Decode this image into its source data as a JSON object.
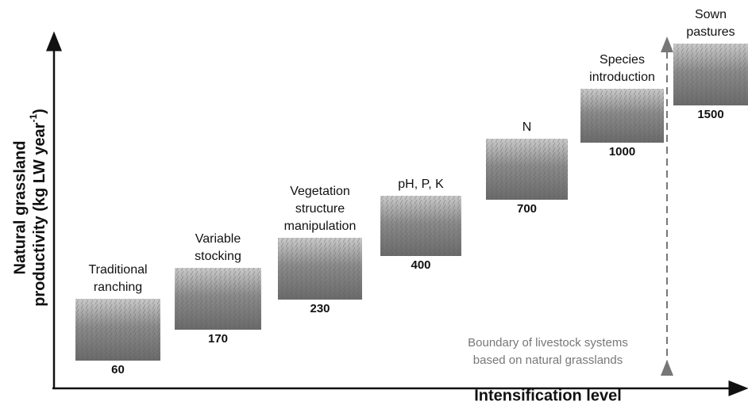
{
  "nodes": [
    {
      "label": [
        "Traditional",
        "ranching"
      ],
      "value": 60
    },
    {
      "label": [
        "Variable",
        "stocking"
      ],
      "value": 170
    },
    {
      "label": [
        "Vegetation",
        "structure",
        "manipulation"
      ],
      "value": 230
    },
    {
      "label": [
        "pH, P, K"
      ],
      "value": 400
    },
    {
      "label": [
        "N"
      ],
      "value": 700
    },
    {
      "label": [
        "Species",
        "introduction"
      ],
      "value": 1000
    },
    {
      "label": [
        "Sown",
        "pastures"
      ],
      "value": 1500
    }
  ],
  "boundary": [
    "Boundary of livestock systems",
    "based on natural grasslands"
  ],
  "x_axis_label": "Intensification level",
  "y_axis_label": {
    "line1": "Natural grassland",
    "line2": "productivity (kg LW year",
    "sup": "-1",
    "close": ")"
  }
}
